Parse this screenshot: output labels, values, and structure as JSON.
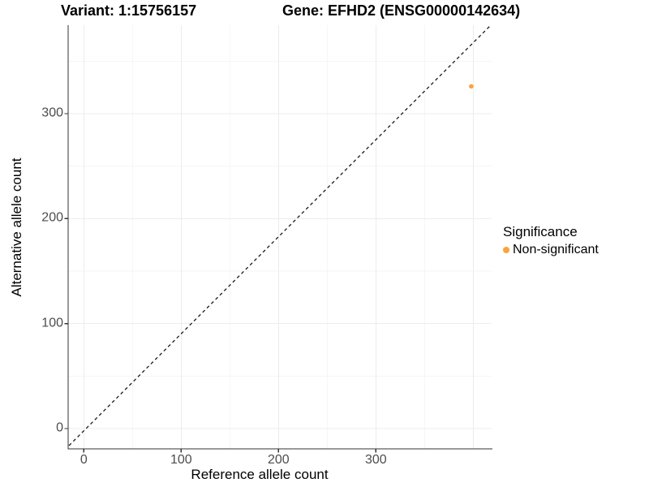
{
  "titles": {
    "variant": "Variant: 1:15756157",
    "gene": "Gene: EFHD2 (ENSG00000142634)"
  },
  "chart_data": {
    "type": "scatter",
    "title": "Variant: 1:15756157 — Gene: EFHD2 (ENSG00000142634)",
    "xlabel": "Reference allele count",
    "ylabel": "Alternative allele count",
    "x_ticks": [
      0,
      100,
      200,
      300
    ],
    "y_ticks": [
      0,
      100,
      200,
      300
    ],
    "x_grid_minor": [
      50,
      150,
      250,
      350
    ],
    "y_grid_minor": [
      50,
      150,
      250,
      350
    ],
    "x_grid_major_extra": [
      400
    ],
    "xlim": [
      -20,
      419
    ],
    "ylim": [
      -19,
      384
    ],
    "grid": true,
    "points": [
      {
        "x": 398,
        "y": 326,
        "series": "Non-significant",
        "color": "#F9A43C"
      }
    ],
    "diagonal": {
      "slope": 1,
      "intercept": 0,
      "style": "dashed",
      "color": "#1a1a1a"
    },
    "legend": {
      "position": "right",
      "title": "Significance",
      "entries": [
        {
          "label": "Non-significant",
          "color": "#F9A43C"
        }
      ]
    },
    "colors": {
      "tick_label": "#4D4D4D",
      "axis_line": "#333333",
      "grid_major": "#ECECEC",
      "grid_minor": "#F6F6F6"
    }
  }
}
